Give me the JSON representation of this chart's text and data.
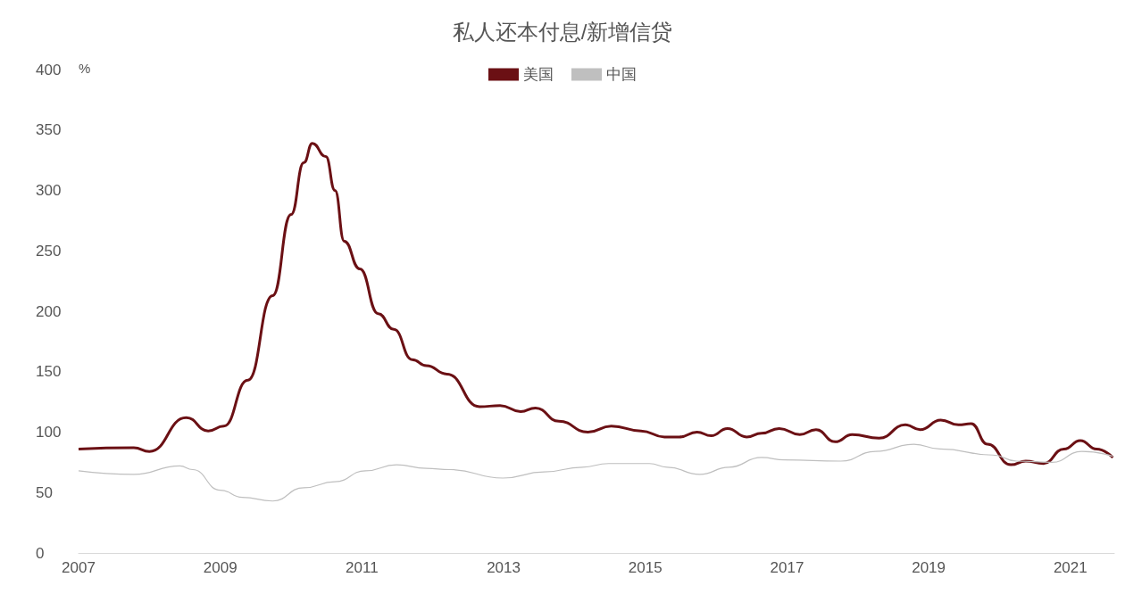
{
  "chart_data": {
    "type": "line",
    "title": "私人还本付息/新增信贷",
    "ylabel": "%",
    "xlim": [
      2007,
      2021.62
    ],
    "xticks": [
      2007,
      2009,
      2011,
      2013,
      2015,
      2017,
      2019,
      2021
    ],
    "ylim": [
      0,
      400
    ],
    "yticks": [
      0,
      50,
      100,
      150,
      200,
      250,
      300,
      350,
      400
    ],
    "grid": false,
    "legend": "top",
    "marker": "none",
    "series": [
      {
        "name": "美国",
        "color": "#6b1014",
        "x": [
          2007.0,
          2007.78,
          2008.0,
          2008.52,
          2008.83,
          2009.05,
          2009.39,
          2009.74,
          2010.0,
          2010.18,
          2010.3,
          2010.49,
          2010.62,
          2010.75,
          2010.97,
          2011.23,
          2011.45,
          2011.71,
          2011.91,
          2012.2,
          2012.66,
          2012.95,
          2013.24,
          2013.45,
          2013.78,
          2014.19,
          2014.52,
          2014.94,
          2015.27,
          2015.48,
          2015.73,
          2015.93,
          2016.16,
          2016.43,
          2016.64,
          2016.89,
          2017.18,
          2017.41,
          2017.68,
          2017.92,
          2018.3,
          2018.67,
          2018.88,
          2019.17,
          2019.42,
          2019.6,
          2019.83,
          2020.16,
          2020.37,
          2020.62,
          2020.91,
          2021.14,
          2021.37,
          2021.6
        ],
        "values": [
          86,
          87,
          84,
          112,
          101,
          105,
          143,
          213,
          280,
          323,
          339,
          328,
          300,
          258,
          235,
          198,
          185,
          160,
          155,
          148,
          121,
          122,
          117,
          120,
          109,
          100,
          105,
          101,
          96,
          96,
          100,
          97,
          103,
          96,
          99,
          103,
          98,
          102,
          92,
          98,
          95,
          106,
          102,
          110,
          106,
          107,
          90,
          73,
          76,
          74,
          86,
          93,
          86,
          79
        ]
      },
      {
        "name": "中国",
        "color": "#bfbfbf",
        "x": [
          2007.0,
          2007.78,
          2008.43,
          2008.61,
          2009.0,
          2009.31,
          2009.74,
          2010.18,
          2010.62,
          2011.05,
          2011.49,
          2011.91,
          2012.24,
          2012.99,
          2013.57,
          2014.11,
          2014.48,
          2015.06,
          2015.31,
          2015.77,
          2016.18,
          2016.64,
          2016.97,
          2017.76,
          2018.25,
          2018.79,
          2019.16,
          2019.91,
          2020.24,
          2020.74,
          2021.16,
          2021.6
        ],
        "values": [
          68,
          65,
          72,
          69,
          52,
          46,
          43,
          54,
          59,
          68,
          73,
          70,
          69,
          62,
          67,
          71,
          74,
          74,
          71,
          65,
          71,
          79,
          77,
          76,
          84,
          90,
          86,
          81,
          76,
          75,
          84,
          80
        ]
      }
    ]
  }
}
